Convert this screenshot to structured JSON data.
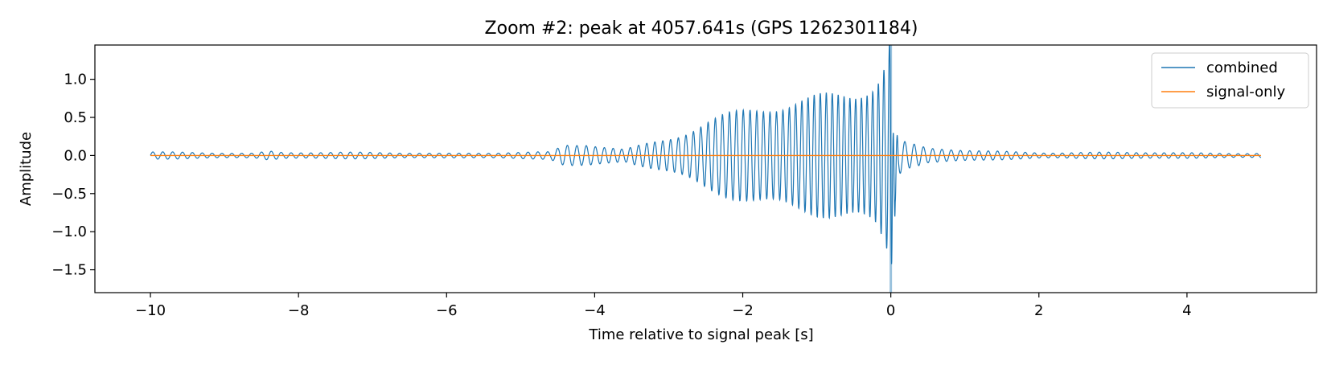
{
  "chart_data": {
    "type": "line",
    "title": "Zoom #2: peak at 4057.641s (GPS 1262301184)",
    "xlabel": "Time relative to signal peak [s]",
    "ylabel": "Amplitude",
    "xlim": [
      -10.75,
      5.75
    ],
    "ylim": [
      -1.8,
      1.45
    ],
    "x_ticks": [
      -10,
      -8,
      -6,
      -4,
      -2,
      0,
      2,
      4
    ],
    "x_tick_labels": [
      "−10",
      "−8",
      "−6",
      "−4",
      "−2",
      "0",
      "2",
      "4"
    ],
    "y_ticks": [
      1.0,
      0.5,
      0.0,
      -0.5,
      -1.0,
      -1.5
    ],
    "y_tick_labels": [
      "1.0",
      "0.5",
      "0.0",
      "−0.5",
      "−1.0",
      "−1.5"
    ],
    "marker_line_x": 0,
    "grid": false,
    "legend_position": "top-right",
    "series": [
      {
        "name": "combined",
        "color": "#1f77b4",
        "x_range": [
          -10,
          5
        ],
        "envelope": {
          "x": [
            -10,
            -8.6,
            -8.4,
            -8.2,
            -6,
            -4.6,
            -4.4,
            -4.1,
            -3.6,
            -3.0,
            -2.5,
            -2.0,
            -1.5,
            -1.0,
            -0.5,
            -0.2,
            -0.05,
            0,
            0.08,
            0.2,
            0.5,
            2,
            5
          ],
          "amplitude": [
            0.04,
            0.03,
            0.06,
            0.04,
            0.03,
            0.04,
            0.12,
            0.14,
            0.08,
            0.25,
            0.4,
            0.5,
            0.62,
            0.78,
            0.92,
            1.05,
            1.3,
            1.6,
            0.25,
            0.15,
            0.08,
            0.04,
            0.03
          ]
        }
      },
      {
        "name": "signal-only",
        "color": "#ff7f0e",
        "x_range": [
          -10,
          5
        ],
        "value": 0.0
      }
    ]
  }
}
